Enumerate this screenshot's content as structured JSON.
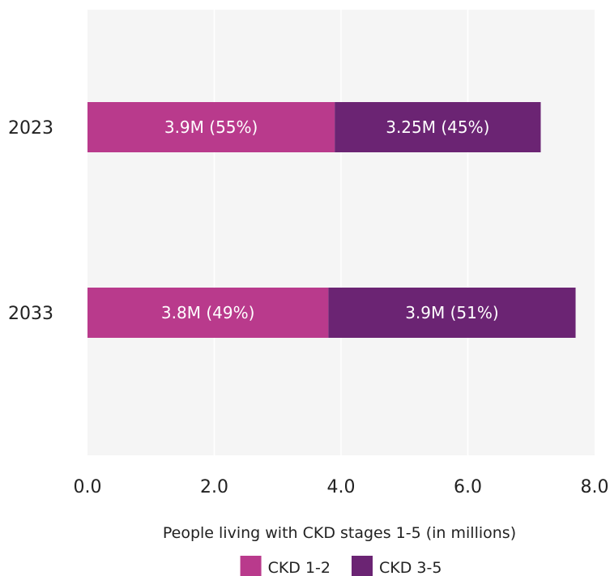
{
  "chart_data": {
    "type": "bar",
    "orientation": "horizontal",
    "stacked": true,
    "categories": [
      "2023",
      "2033"
    ],
    "series": [
      {
        "name": "CKD 1-2",
        "values": [
          3.9,
          3.8
        ],
        "labels": [
          "3.9M (55%)",
          "3.8M (49%)"
        ],
        "color": "#b93a8c"
      },
      {
        "name": "CKD 3-5",
        "values": [
          3.25,
          3.9
        ],
        "labels": [
          "3.25M (45%)",
          "3.9M (51%)"
        ],
        "color": "#6b2473"
      }
    ],
    "xlabel": "People living with CKD stages 1-5 (in millions)",
    "xlim": [
      0,
      8
    ],
    "xticks": [
      "0.0",
      "2.0",
      "4.0",
      "6.0",
      "8.0"
    ],
    "grid": true,
    "legend_position": "bottom",
    "plot_background": "#f5f5f5",
    "grid_color": "#ffffff"
  }
}
